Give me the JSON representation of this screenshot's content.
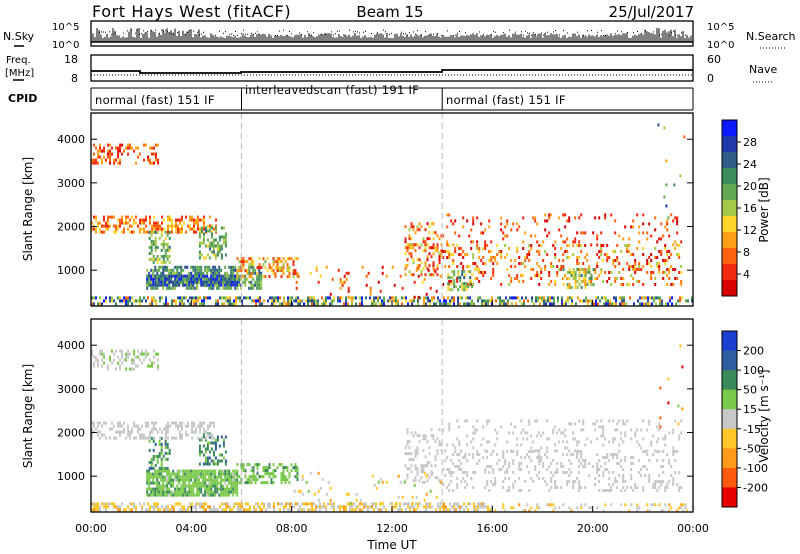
{
  "header": {
    "station": "Fort Hays West (fitACF)",
    "beam": "Beam 15",
    "date": "25/Jul/2017"
  },
  "strip_sky": {
    "left_label": "N.Sky",
    "right_label": "N.Search",
    "left_ticks": [
      "10^5",
      "10^0"
    ],
    "right_ticks": [
      "10^5",
      "10^0"
    ]
  },
  "strip_freq": {
    "left_label_line1": "Freq.",
    "left_label_line2": "[MHz]",
    "right_label": "Nave",
    "left_ticks": [
      "18",
      "8"
    ],
    "right_ticks": [
      "60",
      "0"
    ]
  },
  "cpid": {
    "label": "CPID",
    "segments": [
      {
        "start_hour": 0,
        "end_hour": 6,
        "text": "normal (fast) 151 IF"
      },
      {
        "start_hour": 6,
        "end_hour": 14,
        "text": "interleavedscan (fast) 191 IF"
      },
      {
        "start_hour": 14,
        "end_hour": 24,
        "text": "normal (fast) 151 IF"
      }
    ]
  },
  "chart_data": [
    {
      "type": "heatmap",
      "panel": "power",
      "ylabel": "Slant Range [km]",
      "xlim": [
        0,
        24
      ],
      "ylim": [
        180,
        4600
      ],
      "yticks": [
        "1000",
        "2000",
        "3000",
        "4000"
      ],
      "colorbar": {
        "label": "Power [dB]",
        "ticks": [
          "28",
          "24",
          "20",
          "16",
          "12",
          "8",
          "4"
        ],
        "colors": [
          "#0a1aff",
          "#2138a8",
          "#2f5c88",
          "#3c8c5c",
          "#63a951",
          "#a3c94a",
          "#ffd52d",
          "#ff9f1a",
          "#ff6312",
          "#f42a10",
          "#d80000"
        ]
      },
      "regions": [
        {
          "t0": 0.0,
          "t1": 24.0,
          "r0": 200,
          "r1": 400,
          "density": 0.55,
          "val": [
            0.2,
            1.0
          ]
        },
        {
          "t0": 2.2,
          "t1": 5.8,
          "r0": 650,
          "r1": 900,
          "density": 0.9,
          "val": [
            0.82,
            1.0
          ]
        },
        {
          "t0": 2.2,
          "t1": 6.8,
          "r0": 600,
          "r1": 1100,
          "density": 0.65,
          "val": [
            0.5,
            0.85
          ]
        },
        {
          "t0": 5.8,
          "t1": 8.2,
          "r0": 850,
          "r1": 1300,
          "density": 0.5,
          "val": [
            0.1,
            0.55
          ]
        },
        {
          "t0": 0.0,
          "t1": 5.0,
          "r0": 1850,
          "r1": 2250,
          "density": 0.5,
          "val": [
            0.1,
            0.45
          ]
        },
        {
          "t0": 2.3,
          "t1": 3.1,
          "r0": 1150,
          "r1": 1900,
          "density": 0.45,
          "val": [
            0.4,
            0.75
          ]
        },
        {
          "t0": 4.3,
          "t1": 5.4,
          "r0": 1250,
          "r1": 2000,
          "density": 0.45,
          "val": [
            0.4,
            0.75
          ]
        },
        {
          "t0": 0.0,
          "t1": 2.7,
          "r0": 3450,
          "r1": 3900,
          "density": 0.35,
          "val": [
            0.05,
            0.35
          ]
        },
        {
          "t0": 12.5,
          "t1": 14.0,
          "r0": 900,
          "r1": 2100,
          "density": 0.3,
          "val": [
            0.05,
            0.5
          ]
        },
        {
          "t0": 14.0,
          "t1": 23.5,
          "r0": 700,
          "r1": 1600,
          "density": 0.22,
          "val": [
            0.0,
            0.5
          ]
        },
        {
          "t0": 14.0,
          "t1": 23.5,
          "r0": 1600,
          "r1": 2300,
          "density": 0.12,
          "val": [
            0.0,
            0.35
          ]
        },
        {
          "t0": 18.8,
          "t1": 20.0,
          "r0": 600,
          "r1": 1050,
          "density": 0.5,
          "val": [
            0.35,
            0.75
          ]
        },
        {
          "t0": 14.2,
          "t1": 15.2,
          "r0": 550,
          "r1": 1000,
          "density": 0.5,
          "val": [
            0.35,
            0.75
          ]
        },
        {
          "t0": 8.0,
          "t1": 14.0,
          "r0": 400,
          "r1": 1100,
          "density": 0.06,
          "val": [
            0.0,
            0.4
          ]
        },
        {
          "t0": 22.5,
          "t1": 23.8,
          "r0": 1800,
          "r1": 4500,
          "density": 0.02,
          "val": [
            0.0,
            0.9
          ]
        }
      ]
    },
    {
      "type": "heatmap",
      "panel": "velocity",
      "ylabel": "Slant Range [km]",
      "xlabel": "Time UT",
      "xlim": [
        0,
        24
      ],
      "ylim": [
        180,
        4600
      ],
      "xticks": [
        "00:00",
        "04:00",
        "08:00",
        "12:00",
        "16:00",
        "20:00",
        "00:00"
      ],
      "yticks": [
        "1000",
        "2000",
        "3000",
        "4000"
      ],
      "colorbar": {
        "label": "Velocity [m s⁻¹]",
        "ticks": [
          "200",
          "100",
          "50",
          "15",
          "-15",
          "-50",
          "-100",
          "-200"
        ],
        "colors": [
          "#1c3fd0",
          "#2f5ea0",
          "#3a8a5a",
          "#7ac94a",
          "#c8c8c8",
          "#ffc72a",
          "#ff9a1a",
          "#ff5a10",
          "#e60000"
        ]
      },
      "regions": [
        {
          "t0": 0.0,
          "t1": 16.0,
          "r0": 200,
          "r1": 400,
          "density": 0.55,
          "val": [
            0.3,
            0.55
          ]
        },
        {
          "t0": 16.0,
          "t1": 24.0,
          "r0": 200,
          "r1": 380,
          "density": 0.2,
          "val": [
            0.3,
            0.55
          ]
        },
        {
          "t0": 2.2,
          "t1": 5.8,
          "r0": 600,
          "r1": 1150,
          "density": 0.85,
          "val": [
            0.55,
            0.7
          ]
        },
        {
          "t0": 5.8,
          "t1": 8.2,
          "r0": 850,
          "r1": 1300,
          "density": 0.5,
          "val": [
            0.55,
            0.7
          ]
        },
        {
          "t0": 2.3,
          "t1": 3.1,
          "r0": 1150,
          "r1": 1900,
          "density": 0.4,
          "val": [
            0.6,
            0.8
          ]
        },
        {
          "t0": 4.3,
          "t1": 5.4,
          "r0": 1250,
          "r1": 2000,
          "density": 0.4,
          "val": [
            0.6,
            0.85
          ]
        },
        {
          "t0": 0.0,
          "t1": 5.0,
          "r0": 1850,
          "r1": 2250,
          "density": 0.45,
          "val": [
            0.45,
            0.55
          ]
        },
        {
          "t0": 0.0,
          "t1": 2.7,
          "r0": 3450,
          "r1": 3900,
          "density": 0.35,
          "val": [
            0.45,
            0.6
          ]
        },
        {
          "t0": 12.5,
          "t1": 14.0,
          "r0": 900,
          "r1": 2100,
          "density": 0.3,
          "val": [
            0.45,
            0.55
          ]
        },
        {
          "t0": 14.0,
          "t1": 23.5,
          "r0": 700,
          "r1": 1600,
          "density": 0.22,
          "val": [
            0.45,
            0.55
          ]
        },
        {
          "t0": 14.0,
          "t1": 23.5,
          "r0": 1600,
          "r1": 2300,
          "density": 0.12,
          "val": [
            0.45,
            0.55
          ]
        },
        {
          "t0": 8.0,
          "t1": 14.0,
          "r0": 400,
          "r1": 1100,
          "density": 0.06,
          "val": [
            0.3,
            0.6
          ]
        },
        {
          "t0": 22.5,
          "t1": 23.8,
          "r0": 1800,
          "r1": 4500,
          "density": 0.02,
          "val": [
            0.0,
            1.0
          ]
        }
      ]
    }
  ]
}
